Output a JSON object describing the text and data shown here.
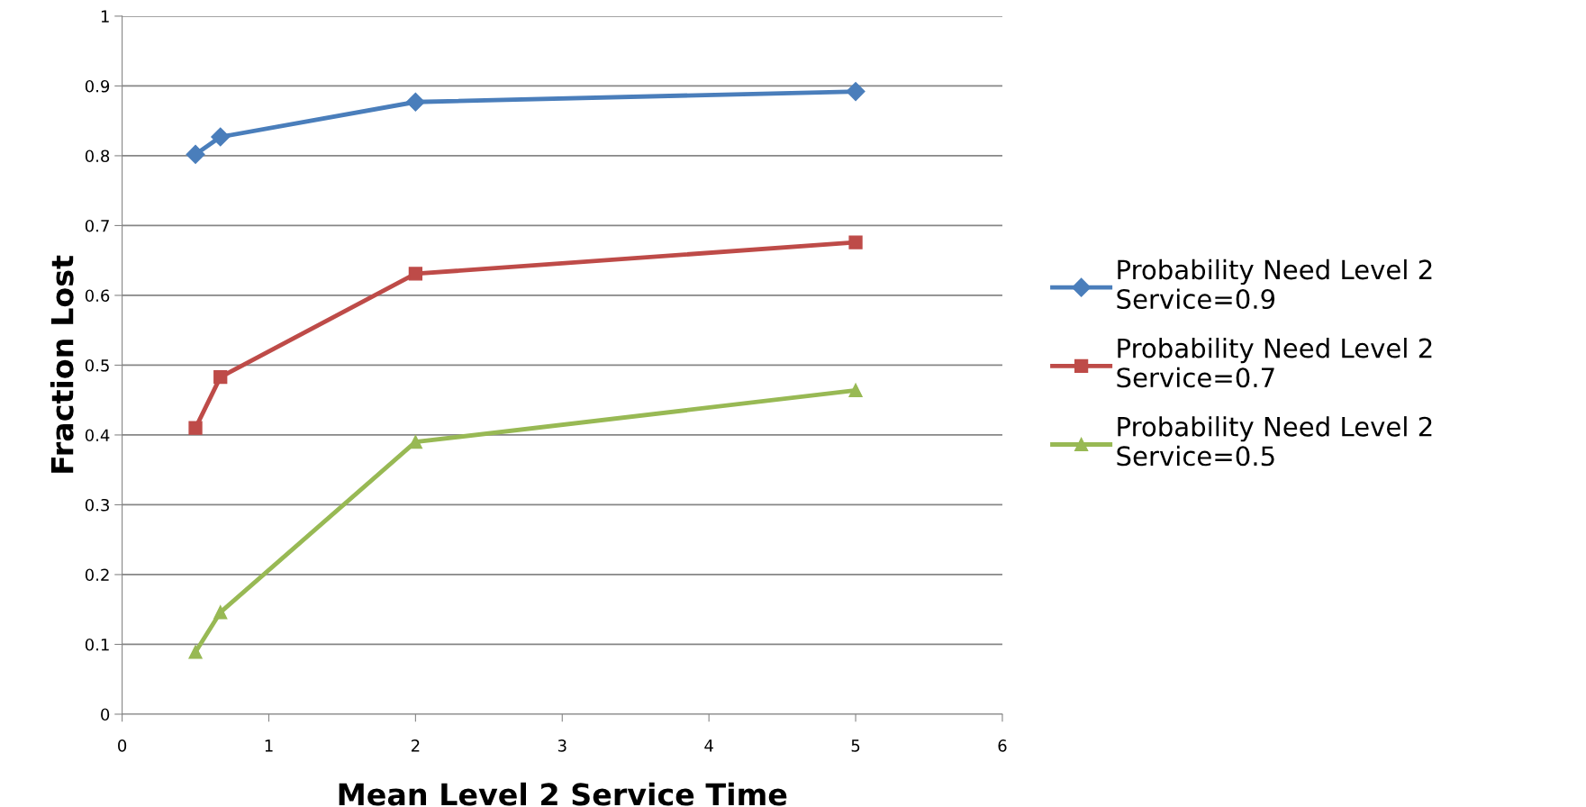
{
  "chart_data": {
    "type": "line",
    "xlabel": "Mean Level 2 Service Time",
    "ylabel": "Fraction Lost",
    "x": [
      0.5,
      0.67,
      2,
      5
    ],
    "series": [
      {
        "name": "Probability Need Level 2\nService=0.9",
        "color": "#4a7ebb",
        "marker": "diamond",
        "values": [
          0.802,
          0.827,
          0.877,
          0.892
        ]
      },
      {
        "name": "Probability Need Level 2\nService=0.7",
        "color": "#be4b48",
        "marker": "square",
        "values": [
          0.41,
          0.483,
          0.631,
          0.676
        ]
      },
      {
        "name": "Probability Need Level 2\nService=0.5",
        "color": "#98b954",
        "marker": "triangle",
        "values": [
          0.089,
          0.146,
          0.39,
          0.464
        ]
      }
    ],
    "xlim": [
      0,
      6
    ],
    "xticks": [
      0,
      1,
      2,
      3,
      4,
      5,
      6
    ],
    "ylim": [
      0,
      1
    ],
    "yticks": [
      0,
      0.1,
      0.2,
      0.3,
      0.4,
      0.5,
      0.6,
      0.7,
      0.8,
      0.9,
      1
    ],
    "grid": "y",
    "legend": "right",
    "line_style": "solid"
  }
}
